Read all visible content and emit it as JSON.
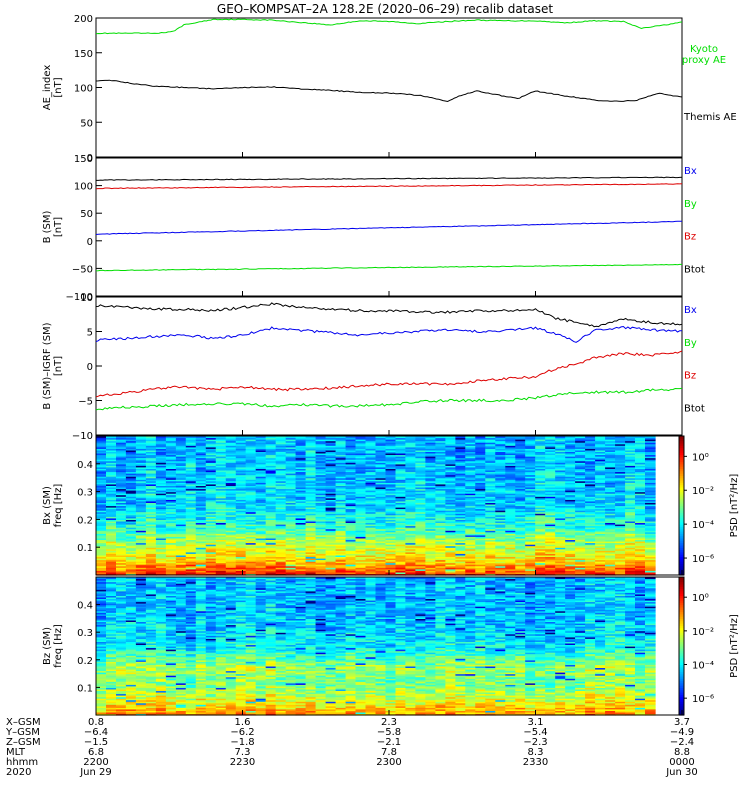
{
  "title": "GEO–KOMPSAT–2A 128.2E (2020–06–29) recalib dataset",
  "colors": {
    "black": "#000000",
    "blue": "#0000ee",
    "green": "#00dd00",
    "red": "#dd0000"
  },
  "chart_data": [
    {
      "id": "ae",
      "type": "line",
      "ylabel": [
        "AE_index",
        "[nT]"
      ],
      "ylim": [
        0,
        200
      ],
      "yticks": [
        "0",
        "50",
        "100",
        "150",
        "200"
      ],
      "series": [
        {
          "name": "Kyoto proxy AE",
          "label_lines": [
            "Kyoto",
            "proxy AE"
          ],
          "color": "#00dd00",
          "x": [
            0,
            6,
            10,
            13,
            15,
            20,
            24,
            30,
            40,
            45,
            50,
            55,
            60,
            65,
            70,
            75,
            80,
            85,
            90,
            93,
            97,
            100
          ],
          "y": [
            178,
            178,
            178,
            180,
            190,
            198,
            198,
            197,
            190,
            196,
            195,
            192,
            195,
            197,
            196,
            196,
            193,
            196,
            195,
            185,
            190,
            194
          ]
        },
        {
          "name": "Themis AE",
          "label_lines": [
            "Themis AE"
          ],
          "color": "#000000",
          "x": [
            0,
            3,
            6,
            10,
            15,
            20,
            25,
            30,
            35,
            40,
            45,
            50,
            55,
            60,
            62,
            65,
            68,
            72,
            75,
            80,
            85,
            88,
            92,
            96,
            100
          ],
          "y": [
            110,
            110,
            106,
            102,
            100,
            98,
            100,
            101,
            98,
            96,
            93,
            92,
            89,
            80,
            88,
            95,
            90,
            84,
            95,
            88,
            82,
            80,
            81,
            92,
            86
          ]
        }
      ]
    },
    {
      "id": "bsm",
      "type": "line",
      "ylabel": [
        "B (SM)",
        "[nT]"
      ],
      "ylim": [
        -100,
        150
      ],
      "yticks": [
        "−100",
        "−50",
        "0",
        "50",
        "100",
        "150"
      ],
      "series": [
        {
          "name": "Bx",
          "label_lines": [
            "Bx"
          ],
          "color": "#0000ee",
          "x": [
            0,
            100
          ],
          "y": [
            12,
            35
          ]
        },
        {
          "name": "By",
          "label_lines": [
            "By"
          ],
          "color": "#00dd00",
          "x": [
            0,
            100
          ],
          "y": [
            -54,
            -43
          ]
        },
        {
          "name": "Bz",
          "label_lines": [
            "Bz"
          ],
          "color": "#dd0000",
          "x": [
            0,
            100
          ],
          "y": [
            95,
            103
          ]
        },
        {
          "name": "Btot",
          "label_lines": [
            "Btot"
          ],
          "color": "#000000",
          "x": [
            0,
            100
          ],
          "y": [
            110,
            115
          ]
        }
      ]
    },
    {
      "id": "bigrf",
      "type": "line",
      "ylabel": [
        "B (SM)–IGRF (SM)",
        "[nT]"
      ],
      "ylim": [
        -10,
        10
      ],
      "yticks": [
        "−10",
        "−5",
        "0",
        "5",
        "10"
      ],
      "series": [
        {
          "name": "Bx",
          "label_lines": [
            "Bx"
          ],
          "color": "#0000ee",
          "x": [
            0,
            5,
            10,
            15,
            20,
            25,
            30,
            35,
            40,
            45,
            50,
            55,
            60,
            65,
            70,
            75,
            78,
            82,
            85,
            90,
            95,
            100
          ],
          "y": [
            3.7,
            4.0,
            4.3,
            4.5,
            4.0,
            4.5,
            5.5,
            5.2,
            4.8,
            4.5,
            4.8,
            5.0,
            5.2,
            5.0,
            5.2,
            5.5,
            4.8,
            3.5,
            5.2,
            5.6,
            5.2,
            5.0
          ]
        },
        {
          "name": "By",
          "label_lines": [
            "By"
          ],
          "color": "#00dd00",
          "x": [
            0,
            5,
            10,
            15,
            20,
            25,
            30,
            35,
            40,
            45,
            50,
            55,
            60,
            65,
            70,
            75,
            80,
            85,
            90,
            95,
            100
          ],
          "y": [
            -6.2,
            -6.0,
            -5.8,
            -5.6,
            -5.5,
            -5.5,
            -5.8,
            -5.6,
            -5.8,
            -5.8,
            -5.6,
            -5.2,
            -5.0,
            -5.0,
            -5.0,
            -4.6,
            -4.0,
            -3.8,
            -3.8,
            -3.5,
            -3.3
          ]
        },
        {
          "name": "Bz",
          "label_lines": [
            "Bz"
          ],
          "color": "#dd0000",
          "x": [
            0,
            5,
            10,
            15,
            20,
            25,
            30,
            35,
            40,
            45,
            50,
            55,
            60,
            65,
            70,
            75,
            78,
            82,
            85,
            90,
            95,
            100
          ],
          "y": [
            -4.3,
            -3.9,
            -3.3,
            -3.0,
            -3.4,
            -3.0,
            -3.4,
            -3.4,
            -3.2,
            -2.9,
            -2.6,
            -2.6,
            -2.6,
            -2.2,
            -1.8,
            -1.6,
            -0.5,
            0.3,
            1.2,
            1.8,
            1.6,
            2.1
          ]
        },
        {
          "name": "Btot",
          "label_lines": [
            "Btot"
          ],
          "color": "#000000",
          "x": [
            0,
            5,
            10,
            15,
            20,
            25,
            30,
            35,
            40,
            45,
            50,
            55,
            60,
            65,
            70,
            75,
            78,
            82,
            85,
            90,
            95,
            100
          ],
          "y": [
            8.8,
            8.5,
            8.3,
            8.2,
            8.0,
            8.5,
            9.0,
            8.5,
            8.3,
            8.0,
            8.0,
            7.8,
            7.8,
            8.0,
            8.0,
            8.3,
            7.0,
            6.3,
            5.7,
            6.8,
            6.3,
            6.0
          ]
        }
      ]
    },
    {
      "id": "bx_spec",
      "type": "heatmap",
      "ylabel": [
        "Bx (SM)",
        "freq [Hz]"
      ],
      "ylim": [
        0,
        0.5
      ],
      "yticks": [
        "0.1",
        "0.2",
        "0.3",
        "0.4"
      ],
      "colorbar_label": "PSD [nT²/Hz]",
      "colorbar_ticks": [
        "10⁰",
        "10⁻²",
        "10⁻⁴",
        "10⁻⁶"
      ],
      "log10_range": [
        -7,
        1.2
      ],
      "z_by_freq": {
        "freq": [
          0.0,
          0.05,
          0.12,
          0.17,
          0.25,
          0.35,
          0.5
        ],
        "log10_psd": [
          0.0,
          -1.5,
          -2.5,
          -3.5,
          -4.2,
          -4.4,
          -4.5
        ]
      }
    },
    {
      "id": "bz_spec",
      "type": "heatmap",
      "ylabel": [
        "Bz (SM)",
        "freq [Hz]"
      ],
      "ylim": [
        0,
        0.5
      ],
      "yticks": [
        "0.1",
        "0.2",
        "0.3",
        "0.4"
      ],
      "colorbar_label": "PSD [nT²/Hz]",
      "colorbar_ticks": [
        "10⁰",
        "10⁻²",
        "10⁻⁴",
        "10⁻⁶"
      ],
      "log10_range": [
        -7,
        1.2
      ],
      "z_by_freq": {
        "freq": [
          0.0,
          0.05,
          0.12,
          0.17,
          0.25,
          0.35,
          0.5
        ],
        "log10_psd": [
          -1.0,
          -2.0,
          -3.0,
          -2.6,
          -4.0,
          -4.4,
          -4.5
        ]
      }
    }
  ],
  "x_axis": {
    "row_labels": [
      "X–GSM",
      "Y–GSM",
      "Z–GSM",
      "MLT",
      "hhmm",
      "2020"
    ],
    "ticks": [
      {
        "x": 0,
        "values": [
          "0.8",
          "−6.4",
          "−1.5",
          "6.8",
          "2200",
          "Jun 29"
        ]
      },
      {
        "x": 25,
        "values": [
          "1.6",
          "−6.2",
          "−1.8",
          "7.3",
          "2230",
          ""
        ]
      },
      {
        "x": 50,
        "values": [
          "2.3",
          "−5.8",
          "−2.1",
          "7.8",
          "2300",
          ""
        ]
      },
      {
        "x": 75,
        "values": [
          "3.1",
          "−5.4",
          "−2.3",
          "8.3",
          "2330",
          ""
        ]
      },
      {
        "x": 100,
        "values": [
          "3.7",
          "−4.9",
          "−2.4",
          "8.8",
          "0000",
          "Jun 30"
        ]
      }
    ]
  }
}
